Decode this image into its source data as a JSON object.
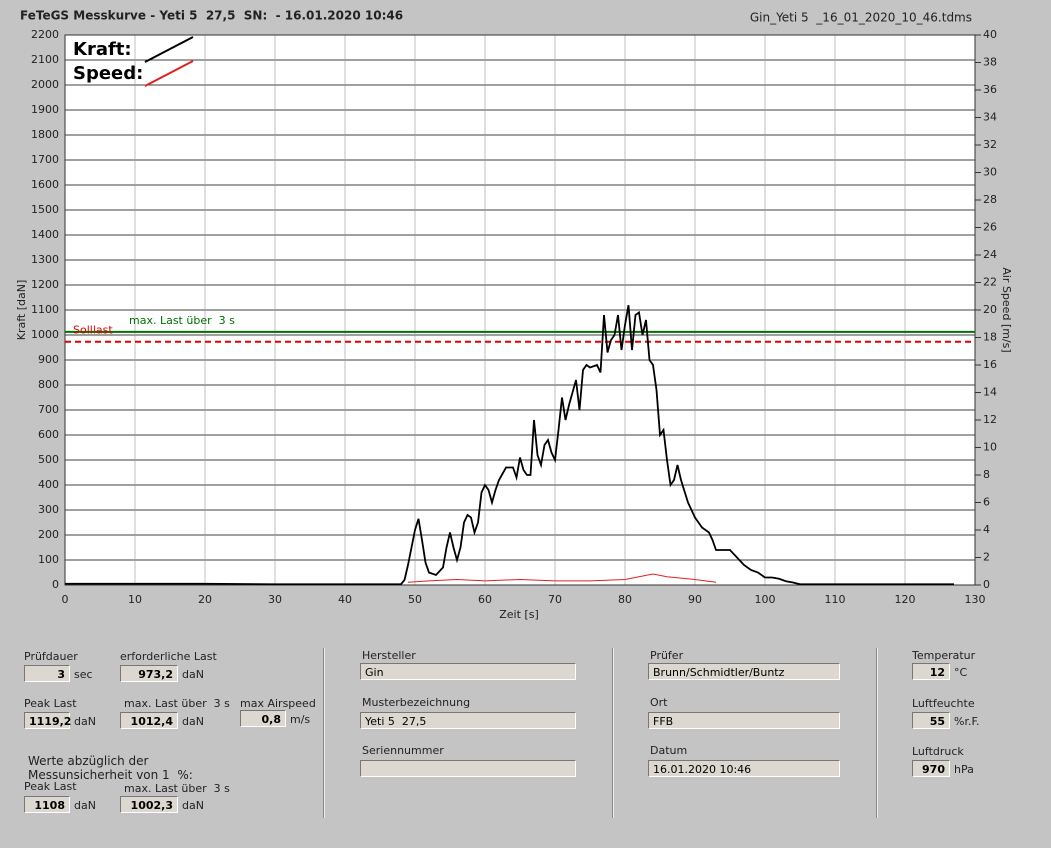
{
  "header": {
    "title": "FeTeGS Messkurve - Yeti 5  27,5  SN:  - 16.01.2020 10:46",
    "file": "Gin_Yeti 5  _16_01_2020_10_46.tdms"
  },
  "chart_data": {
    "type": "line",
    "x_label": "Zeit [s]",
    "y_label": "Kraft [daN]",
    "y2_label": "Air Speed [m/s]",
    "xlim": [
      0,
      130
    ],
    "xticks": [
      0,
      10,
      20,
      30,
      40,
      50,
      60,
      70,
      80,
      90,
      100,
      110,
      120,
      130
    ],
    "ylim": [
      0,
      2200
    ],
    "yticks": [
      0,
      100,
      200,
      300,
      400,
      500,
      600,
      700,
      800,
      900,
      1000,
      1100,
      1200,
      1300,
      1400,
      1500,
      1600,
      1700,
      1800,
      1900,
      2000,
      2100,
      2200
    ],
    "y2lim": [
      0,
      40
    ],
    "y2ticks": [
      0,
      2,
      4,
      6,
      8,
      10,
      12,
      14,
      16,
      18,
      20,
      22,
      24,
      26,
      28,
      30,
      32,
      34,
      36,
      38,
      40
    ],
    "grid": true,
    "series": [
      {
        "name": "Kraft:",
        "color": "#000000",
        "x": [
          0,
          20,
          30,
          40,
          48,
          48.5,
          49,
          49.5,
          50,
          50.5,
          51,
          51.5,
          52,
          53,
          54,
          54.5,
          55,
          55.5,
          56,
          56.5,
          57,
          57.5,
          58,
          58.5,
          59,
          59.5,
          60,
          60.5,
          61,
          61.5,
          62,
          63,
          64,
          64.5,
          65,
          65.5,
          66,
          66.5,
          67,
          67.5,
          68,
          68.5,
          69,
          69.5,
          70,
          70.5,
          71,
          71.5,
          72,
          72.5,
          73,
          73.5,
          74,
          74.5,
          75,
          76,
          76.5,
          77,
          77.5,
          78,
          78.5,
          79,
          79.5,
          80,
          80.5,
          81,
          81.5,
          82,
          82.5,
          83,
          83.5,
          84,
          84.5,
          85,
          85.5,
          86,
          86.5,
          87,
          87.5,
          88,
          89,
          90,
          91,
          92,
          92.5,
          93,
          94,
          95,
          96,
          97,
          98,
          99,
          100,
          101,
          102,
          103,
          104,
          105,
          110,
          127
        ],
        "values": [
          5,
          5,
          3,
          3,
          3,
          20,
          80,
          150,
          220,
          265,
          180,
          90,
          50,
          40,
          70,
          150,
          210,
          150,
          100,
          150,
          250,
          280,
          270,
          210,
          250,
          370,
          400,
          380,
          330,
          380,
          420,
          470,
          470,
          430,
          510,
          460,
          440,
          440,
          660,
          520,
          480,
          560,
          580,
          530,
          500,
          620,
          750,
          660,
          720,
          770,
          820,
          700,
          860,
          880,
          870,
          880,
          850,
          1080,
          930,
          980,
          1000,
          1080,
          940,
          1040,
          1119.2,
          940,
          1080,
          1090,
          1000,
          1060,
          900,
          880,
          780,
          600,
          620,
          500,
          400,
          420,
          480,
          420,
          330,
          270,
          230,
          210,
          180,
          140,
          140,
          140,
          110,
          80,
          60,
          50,
          30,
          30,
          25,
          15,
          10,
          3,
          3,
          3
        ]
      },
      {
        "name": "Speed:",
        "color": "#e02020",
        "axis": "y2",
        "x": [
          49,
          52,
          56,
          60,
          65,
          70,
          75,
          80,
          82,
          84,
          86,
          88,
          90,
          93
        ],
        "values": [
          0.2,
          0.3,
          0.4,
          0.3,
          0.4,
          0.3,
          0.3,
          0.4,
          0.6,
          0.8,
          0.6,
          0.5,
          0.4,
          0.2
        ]
      }
    ],
    "reference_lines": [
      {
        "label": "max. Last über  3 s",
        "value": 1012.4,
        "color": "#007000"
      },
      {
        "label": "Solllast",
        "value": 973.2,
        "color": "#e00000",
        "dashed": true
      }
    ]
  },
  "panel": {
    "note": [
      "Werte abzüglich der",
      "Messunsicherheit von 1  %:"
    ],
    "fields": [
      {
        "label": "Prüfdauer",
        "value": "3",
        "unit": "sec"
      },
      {
        "label": "erforderliche Last",
        "value": "973,2",
        "unit": "daN"
      },
      {
        "label": "Peak Last",
        "value": "1119,2",
        "unit": "daN"
      },
      {
        "label": "max. Last über  3 s",
        "value": "1012,4",
        "unit": "daN"
      },
      {
        "label": "max Airspeed",
        "value": "0,8",
        "unit": "m/s"
      },
      {
        "label": "Peak Last",
        "value": "1108",
        "unit": "daN"
      },
      {
        "label": "max. Last über  3 s",
        "value": "1002,3",
        "unit": "daN"
      },
      {
        "label": "Hersteller",
        "value": "Gin"
      },
      {
        "label": "Musterbezeichnung",
        "value": "Yeti 5  27,5"
      },
      {
        "label": "Seriennummer"
      },
      {
        "label": "Prüfer",
        "value": "Brunn/Schmidtler/Buntz"
      },
      {
        "label": "Ort",
        "value": "FFB"
      },
      {
        "label": "Datum",
        "value": "16.01.2020 10:46"
      },
      {
        "label": "Temperatur",
        "value": "12",
        "unit": "°C"
      },
      {
        "label": "Luftfeuchte",
        "value": "55",
        "unit": "%r.F."
      },
      {
        "label": "Luftdruck",
        "value": "970",
        "unit": "hPa"
      }
    ]
  }
}
